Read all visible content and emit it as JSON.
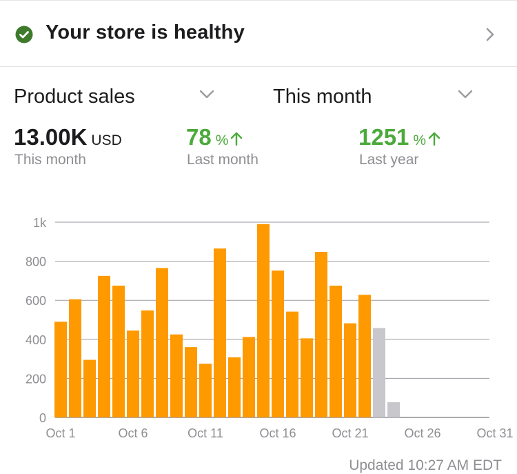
{
  "health": {
    "text": "Your store is healthy",
    "icon": "check-circle-icon"
  },
  "selectors": {
    "metric": {
      "label": "Product sales"
    },
    "period": {
      "label": "This month"
    }
  },
  "kpis": {
    "current": {
      "value": "13.00K",
      "unit": "USD",
      "label": "This month"
    },
    "vs_last_month": {
      "value": "78",
      "unit": "%",
      "label": "Last month",
      "direction": "up"
    },
    "vs_last_year": {
      "value": "1251",
      "unit": "%",
      "label": "Last year",
      "direction": "up"
    }
  },
  "colors": {
    "bar_actual": "#ff9900",
    "bar_projected": "#c8c7cc",
    "positive": "#4caa3c"
  },
  "updated": "Updated 10:27 AM EDT",
  "chart_data": {
    "type": "bar",
    "x": [
      1,
      2,
      3,
      4,
      5,
      6,
      7,
      8,
      9,
      10,
      11,
      12,
      13,
      14,
      15,
      16,
      17,
      18,
      19,
      20,
      21,
      22,
      23,
      24
    ],
    "values": [
      490,
      605,
      295,
      725,
      675,
      445,
      548,
      765,
      425,
      360,
      275,
      865,
      308,
      412,
      990,
      752,
      542,
      405,
      848,
      675,
      482,
      628,
      458,
      78
    ],
    "status": [
      "actual",
      "actual",
      "actual",
      "actual",
      "actual",
      "actual",
      "actual",
      "actual",
      "actual",
      "actual",
      "actual",
      "actual",
      "actual",
      "actual",
      "actual",
      "actual",
      "actual",
      "actual",
      "actual",
      "actual",
      "actual",
      "actual",
      "projected",
      "projected"
    ],
    "x_ticks": [
      1,
      6,
      11,
      16,
      21,
      26,
      31
    ],
    "x_tick_labels": [
      "Oct 1",
      "Oct 6",
      "Oct 11",
      "Oct 16",
      "Oct 21",
      "Oct 26",
      "Oct 31"
    ],
    "y_ticks": [
      0,
      200,
      400,
      600,
      800,
      1000
    ],
    "y_tick_labels": [
      "0",
      "200",
      "400",
      "600",
      "800",
      "1k"
    ],
    "xlim": [
      1,
      31
    ],
    "ylim": [
      0,
      1000
    ],
    "grid": true
  }
}
